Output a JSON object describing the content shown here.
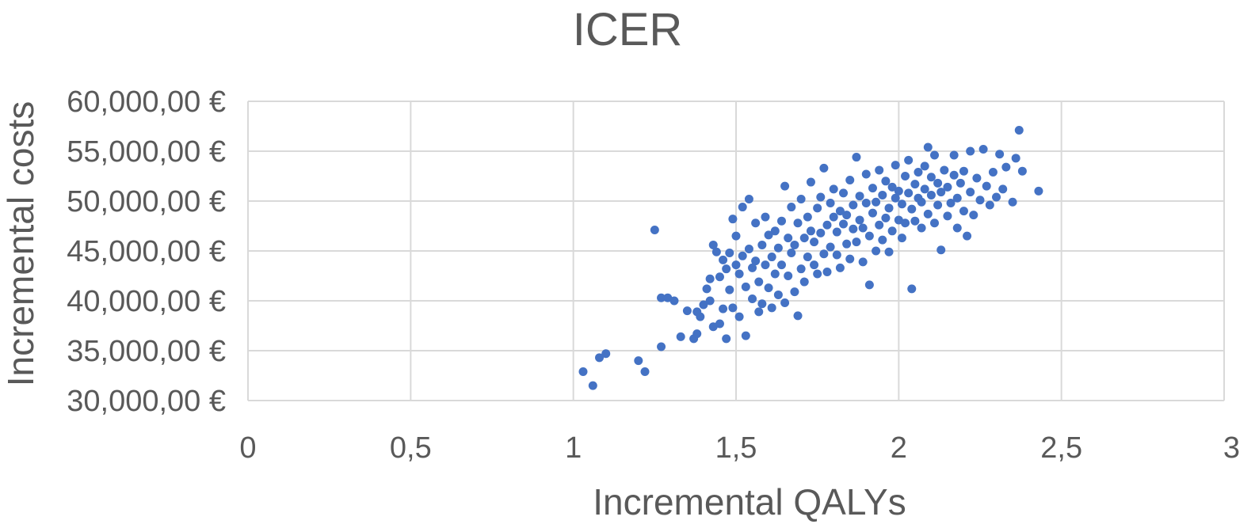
{
  "chart_data": {
    "type": "scatter",
    "title": "ICER",
    "xlabel": "Incremental QALYs",
    "ylabel": "Incremental costs",
    "xlim": [
      0,
      3
    ],
    "ylim": [
      30000,
      60000
    ],
    "x_ticks": [
      0,
      0.5,
      1,
      1.5,
      2,
      2.5,
      3
    ],
    "x_tick_labels": [
      "0",
      "0,5",
      "1",
      "1,5",
      "2",
      "2,5",
      "3"
    ],
    "y_ticks": [
      30000,
      35000,
      40000,
      45000,
      50000,
      55000,
      60000
    ],
    "y_tick_labels": [
      "30,000,00 €",
      "35,000,00 €",
      "40,000,00 €",
      "45,000,00 €",
      "50,000,00 €",
      "55,000,00 €",
      "60,000,00 €"
    ],
    "grid": true,
    "legend": "none",
    "marker_color": "#4472C4",
    "series": [
      {
        "points": [
          [
            1.03,
            32900
          ],
          [
            1.06,
            31500
          ],
          [
            1.08,
            34300
          ],
          [
            1.1,
            34700
          ],
          [
            1.2,
            34000
          ],
          [
            1.22,
            32900
          ],
          [
            1.25,
            47100
          ],
          [
            1.27,
            35400
          ],
          [
            1.27,
            40300
          ],
          [
            1.29,
            40300
          ],
          [
            1.31,
            40000
          ],
          [
            1.33,
            36400
          ],
          [
            1.35,
            39000
          ],
          [
            1.37,
            36200
          ],
          [
            1.38,
            38900
          ],
          [
            1.38,
            36700
          ],
          [
            1.39,
            38400
          ],
          [
            1.4,
            39600
          ],
          [
            1.41,
            41200
          ],
          [
            1.42,
            42200
          ],
          [
            1.42,
            40000
          ],
          [
            1.43,
            45600
          ],
          [
            1.43,
            37400
          ],
          [
            1.44,
            44900
          ],
          [
            1.45,
            42400
          ],
          [
            1.45,
            37700
          ],
          [
            1.46,
            44100
          ],
          [
            1.46,
            39200
          ],
          [
            1.47,
            36200
          ],
          [
            1.47,
            43200
          ],
          [
            1.48,
            41100
          ],
          [
            1.48,
            44800
          ],
          [
            1.49,
            48200
          ],
          [
            1.49,
            39300
          ],
          [
            1.5,
            43600
          ],
          [
            1.5,
            46500
          ],
          [
            1.51,
            38400
          ],
          [
            1.51,
            42700
          ],
          [
            1.52,
            44500
          ],
          [
            1.52,
            49400
          ],
          [
            1.53,
            36500
          ],
          [
            1.53,
            41400
          ],
          [
            1.54,
            45200
          ],
          [
            1.54,
            50200
          ],
          [
            1.55,
            40200
          ],
          [
            1.55,
            43300
          ],
          [
            1.56,
            47800
          ],
          [
            1.56,
            44000
          ],
          [
            1.57,
            38900
          ],
          [
            1.57,
            41900
          ],
          [
            1.58,
            45600
          ],
          [
            1.58,
            39700
          ],
          [
            1.59,
            43600
          ],
          [
            1.59,
            48400
          ],
          [
            1.6,
            41300
          ],
          [
            1.6,
            46600
          ],
          [
            1.61,
            44400
          ],
          [
            1.61,
            39300
          ],
          [
            1.62,
            42700
          ],
          [
            1.62,
            47000
          ],
          [
            1.63,
            45300
          ],
          [
            1.63,
            40600
          ],
          [
            1.64,
            48000
          ],
          [
            1.64,
            43600
          ],
          [
            1.65,
            51500
          ],
          [
            1.65,
            39800
          ],
          [
            1.66,
            46300
          ],
          [
            1.66,
            42500
          ],
          [
            1.67,
            44800
          ],
          [
            1.67,
            49400
          ],
          [
            1.68,
            40900
          ],
          [
            1.68,
            45600
          ],
          [
            1.69,
            47800
          ],
          [
            1.69,
            38500
          ],
          [
            1.7,
            43200
          ],
          [
            1.7,
            50200
          ],
          [
            1.71,
            46300
          ],
          [
            1.71,
            41900
          ],
          [
            1.72,
            48400
          ],
          [
            1.72,
            44400
          ],
          [
            1.73,
            47000
          ],
          [
            1.73,
            51900
          ],
          [
            1.74,
            43600
          ],
          [
            1.74,
            45900
          ],
          [
            1.75,
            49300
          ],
          [
            1.75,
            42700
          ],
          [
            1.76,
            46800
          ],
          [
            1.76,
            50400
          ],
          [
            1.77,
            44700
          ],
          [
            1.77,
            53300
          ],
          [
            1.78,
            47600
          ],
          [
            1.78,
            42900
          ],
          [
            1.79,
            49800
          ],
          [
            1.79,
            45400
          ],
          [
            1.8,
            48400
          ],
          [
            1.8,
            51200
          ],
          [
            1.81,
            44600
          ],
          [
            1.81,
            46900
          ],
          [
            1.82,
            49000
          ],
          [
            1.82,
            43300
          ],
          [
            1.83,
            47700
          ],
          [
            1.83,
            50800
          ],
          [
            1.84,
            45700
          ],
          [
            1.84,
            48600
          ],
          [
            1.85,
            52100
          ],
          [
            1.85,
            44200
          ],
          [
            1.86,
            47200
          ],
          [
            1.86,
            49600
          ],
          [
            1.87,
            54400
          ],
          [
            1.87,
            45900
          ],
          [
            1.88,
            48100
          ],
          [
            1.88,
            50500
          ],
          [
            1.89,
            43900
          ],
          [
            1.89,
            47300
          ],
          [
            1.9,
            49800
          ],
          [
            1.9,
            52700
          ],
          [
            1.91,
            41600
          ],
          [
            1.91,
            46500
          ],
          [
            1.92,
            48800
          ],
          [
            1.92,
            51300
          ],
          [
            1.93,
            45000
          ],
          [
            1.93,
            49900
          ],
          [
            1.94,
            47600
          ],
          [
            1.94,
            53100
          ],
          [
            1.95,
            46100
          ],
          [
            1.95,
            50600
          ],
          [
            1.96,
            48300
          ],
          [
            1.96,
            52000
          ],
          [
            1.97,
            44900
          ],
          [
            1.97,
            49300
          ],
          [
            1.98,
            51400
          ],
          [
            1.98,
            47000
          ],
          [
            1.99,
            50300
          ],
          [
            1.99,
            53600
          ],
          [
            2.0,
            48100
          ],
          [
            2.0,
            51000
          ],
          [
            2.01,
            46300
          ],
          [
            2.01,
            49700
          ],
          [
            2.02,
            52500
          ],
          [
            2.02,
            47800
          ],
          [
            2.03,
            50800
          ],
          [
            2.03,
            54100
          ],
          [
            2.04,
            41200
          ],
          [
            2.04,
            49200
          ],
          [
            2.05,
            51700
          ],
          [
            2.05,
            48000
          ],
          [
            2.06,
            50300
          ],
          [
            2.06,
            52900
          ],
          [
            2.07,
            47300
          ],
          [
            2.07,
            49900
          ],
          [
            2.08,
            53500
          ],
          [
            2.08,
            51200
          ],
          [
            2.09,
            55400
          ],
          [
            2.09,
            48700
          ],
          [
            2.1,
            50600
          ],
          [
            2.1,
            52400
          ],
          [
            2.11,
            47800
          ],
          [
            2.11,
            54600
          ],
          [
            2.12,
            49600
          ],
          [
            2.12,
            51800
          ],
          [
            2.13,
            45100
          ],
          [
            2.13,
            50900
          ],
          [
            2.14,
            53100
          ],
          [
            2.15,
            48500
          ],
          [
            2.15,
            51400
          ],
          [
            2.16,
            49800
          ],
          [
            2.17,
            52600
          ],
          [
            2.17,
            54600
          ],
          [
            2.18,
            47300
          ],
          [
            2.18,
            50300
          ],
          [
            2.19,
            51800
          ],
          [
            2.2,
            49000
          ],
          [
            2.2,
            53000
          ],
          [
            2.21,
            46500
          ],
          [
            2.22,
            50900
          ],
          [
            2.22,
            55000
          ],
          [
            2.23,
            48600
          ],
          [
            2.24,
            52300
          ],
          [
            2.25,
            50100
          ],
          [
            2.26,
            55200
          ],
          [
            2.27,
            51500
          ],
          [
            2.28,
            49600
          ],
          [
            2.29,
            52900
          ],
          [
            2.3,
            50400
          ],
          [
            2.31,
            54700
          ],
          [
            2.32,
            51200
          ],
          [
            2.33,
            53400
          ],
          [
            2.35,
            49900
          ],
          [
            2.36,
            54300
          ],
          [
            2.37,
            57100
          ],
          [
            2.38,
            53000
          ],
          [
            2.43,
            51000
          ]
        ]
      }
    ]
  }
}
